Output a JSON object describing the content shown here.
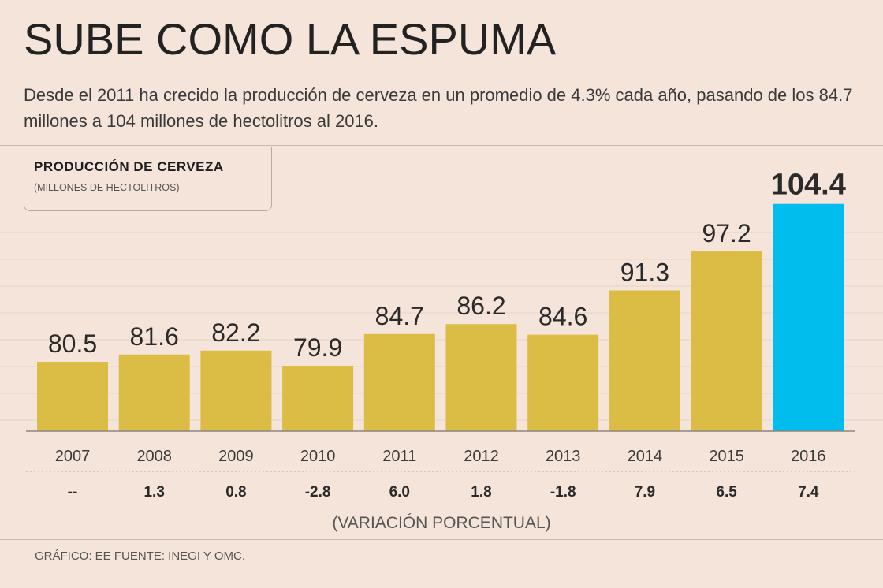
{
  "header": {
    "title": "SUBE COMO LA ESPUMA",
    "subtitle": "Desde el 2011 ha crecido la producción de cerveza en un promedio de 4.3% cada año, pasando de los 84.7 millones a 104 millones de hectolitros al 2016."
  },
  "chart_data": {
    "type": "bar",
    "title": "PRODUCCIÓN DE CERVEZA",
    "ylabel": "(MILLONES DE HECTOLITROS)",
    "categories": [
      "2007",
      "2008",
      "2009",
      "2010",
      "2011",
      "2012",
      "2013",
      "2014",
      "2015",
      "2016"
    ],
    "values": [
      80.5,
      81.6,
      82.2,
      79.9,
      84.7,
      86.2,
      84.6,
      91.3,
      97.2,
      104.4
    ],
    "value_labels": [
      "80.5",
      "81.6",
      "82.2",
      "79.9",
      "84.7",
      "86.2",
      "84.6",
      "91.3",
      "97.2",
      "104.4"
    ],
    "variation": [
      "--",
      "1.3",
      "0.8",
      "-2.8",
      "6.0",
      "1.8",
      "-1.8",
      "7.9",
      "6.5",
      "7.4"
    ],
    "variation_label": "(VARIACIÓN PORCENTUAL)",
    "colors": {
      "bar": "#dbbd45",
      "highlight": "#00bdee",
      "grid": "#e6d3c8"
    },
    "highlight_index": 9,
    "grid": true
  },
  "footer": {
    "source": "GRÁFICO: EE  FUENTE: INEGI Y OMC."
  }
}
